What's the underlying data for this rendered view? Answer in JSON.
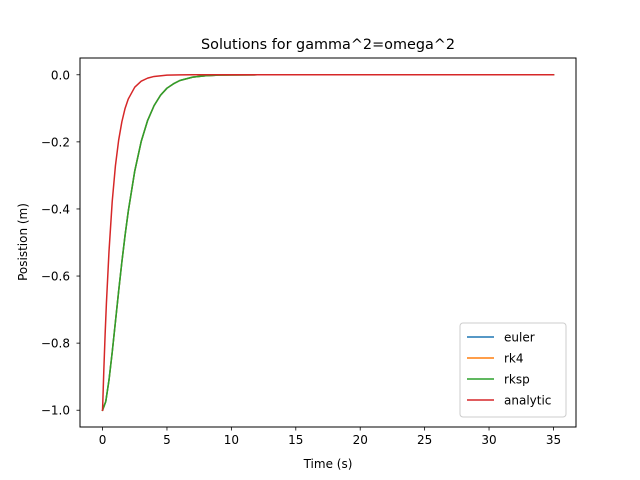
{
  "chart_data": {
    "type": "line",
    "title": "Solutions for gamma^2=omega^2",
    "xlabel": "Time (s)",
    "ylabel": "Posistion (m)",
    "xlim": [
      -1.75,
      36.75
    ],
    "ylim": [
      -1.05,
      0.05
    ],
    "xticks": [
      0,
      5,
      10,
      15,
      20,
      25,
      30,
      35
    ],
    "xtick_labels": [
      "0",
      "5",
      "10",
      "15",
      "20",
      "25",
      "30",
      "35"
    ],
    "yticks": [
      0.0,
      -0.2,
      -0.4,
      -0.6,
      -0.8,
      -1.0
    ],
    "ytick_labels": [
      "0.0",
      "−0.2",
      "−0.4",
      "−0.6",
      "−0.8",
      "−1.0"
    ],
    "grid": false,
    "legend_position": "lower right",
    "series": [
      {
        "name": "euler",
        "color": "#1f77b4",
        "x": [
          0,
          0.25,
          0.5,
          0.75,
          1,
          1.25,
          1.5,
          1.75,
          2,
          2.5,
          3,
          3.5,
          4,
          4.5,
          5,
          5.5,
          6,
          7,
          8,
          9,
          10,
          12,
          15,
          20,
          25,
          30,
          35
        ],
        "y": [
          -1.0,
          -0.974,
          -0.91,
          -0.827,
          -0.736,
          -0.645,
          -0.558,
          -0.478,
          -0.406,
          -0.287,
          -0.199,
          -0.136,
          -0.092,
          -0.061,
          -0.04,
          -0.027,
          -0.017,
          -0.007,
          -0.003,
          -0.001,
          -0.0005,
          -0.0001,
          0,
          0,
          0,
          0,
          0
        ]
      },
      {
        "name": "rk4",
        "color": "#ff7f0e",
        "x": [
          0,
          0.25,
          0.5,
          0.75,
          1,
          1.25,
          1.5,
          1.75,
          2,
          2.5,
          3,
          3.5,
          4,
          4.5,
          5,
          5.5,
          6,
          7,
          8,
          9,
          10,
          12,
          15,
          20,
          25,
          30,
          35
        ],
        "y": [
          -1.0,
          -0.974,
          -0.91,
          -0.827,
          -0.736,
          -0.645,
          -0.558,
          -0.478,
          -0.406,
          -0.287,
          -0.199,
          -0.136,
          -0.092,
          -0.061,
          -0.04,
          -0.027,
          -0.017,
          -0.007,
          -0.003,
          -0.001,
          -0.0005,
          -0.0001,
          0,
          0,
          0,
          0,
          0
        ]
      },
      {
        "name": "rksp",
        "color": "#2ca02c",
        "x": [
          0,
          0.25,
          0.5,
          0.75,
          1,
          1.25,
          1.5,
          1.75,
          2,
          2.5,
          3,
          3.5,
          4,
          4.5,
          5,
          5.5,
          6,
          7,
          8,
          9,
          10,
          12,
          15,
          20,
          25,
          30,
          35
        ],
        "y": [
          -1.0,
          -0.974,
          -0.91,
          -0.827,
          -0.736,
          -0.645,
          -0.558,
          -0.478,
          -0.406,
          -0.287,
          -0.199,
          -0.136,
          -0.092,
          -0.061,
          -0.04,
          -0.027,
          -0.017,
          -0.007,
          -0.003,
          -0.001,
          -0.0005,
          -0.0001,
          0,
          0,
          0,
          0,
          0
        ]
      },
      {
        "name": "analytic",
        "color": "#d62728",
        "x": [
          0,
          0.1,
          0.2,
          0.3,
          0.5,
          0.75,
          1,
          1.25,
          1.5,
          1.75,
          2,
          2.5,
          3,
          3.5,
          4,
          5,
          6,
          7,
          8,
          10,
          12,
          15,
          20,
          25,
          30,
          35
        ],
        "y": [
          -1.0,
          -0.88,
          -0.774,
          -0.681,
          -0.527,
          -0.378,
          -0.271,
          -0.195,
          -0.14,
          -0.1,
          -0.072,
          -0.037,
          -0.019,
          -0.01,
          -0.005,
          -0.001,
          -0.0003,
          -0.0001,
          0,
          0,
          0,
          0,
          0,
          0,
          0,
          0
        ]
      }
    ]
  }
}
